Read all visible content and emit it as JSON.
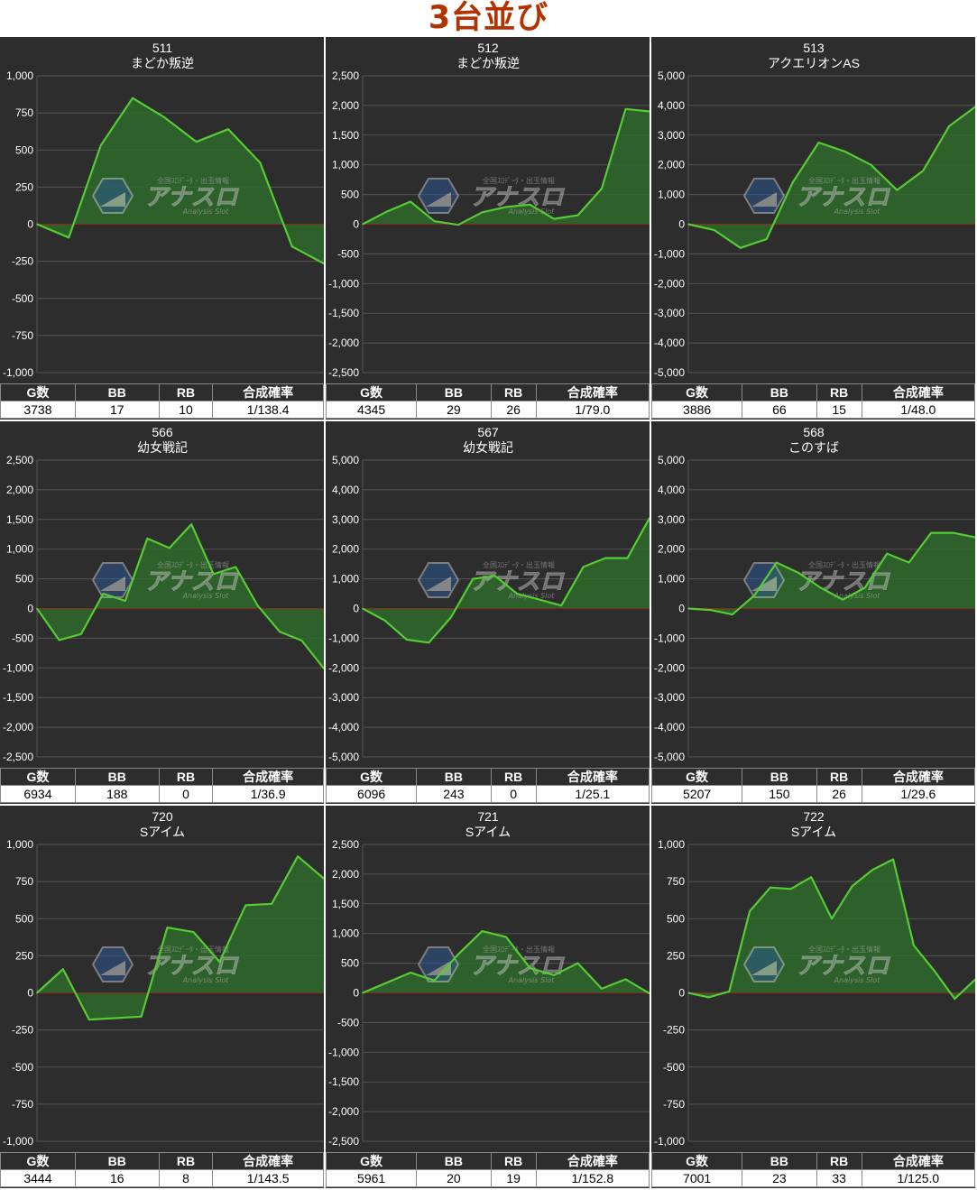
{
  "page": {
    "title": "3台並び"
  },
  "watermark": {
    "main": "アナスロ",
    "top": "全国ｽﾛﾃﾞｰﾀ・出玉情報",
    "sub": "Analysis Slot"
  },
  "colors": {
    "background": "#2d2d2d",
    "line": "#55cc33",
    "fill": "#2f6a2c",
    "zero_line": "#cc0000",
    "grid": "#555555",
    "title": "#b23200"
  },
  "stats_headers": [
    "G数",
    "BB",
    "RB",
    "合成確率"
  ],
  "chart_data": [
    {
      "type": "area",
      "number": "511",
      "name": "まどか叛逆",
      "ylim": [
        -1000,
        1000
      ],
      "ticks": [
        "1,000",
        "750",
        "500",
        "250",
        "0",
        "-250",
        "-500",
        "-750",
        "-1,000"
      ],
      "values": [
        0,
        -90,
        530,
        850,
        720,
        555,
        640,
        415,
        -150,
        -265
      ],
      "stats": {
        "games": "3738",
        "bb": "17",
        "rb": "10",
        "prob": "1/138.4"
      }
    },
    {
      "type": "area",
      "number": "512",
      "name": "まどか叛逆",
      "ylim": [
        -2500,
        2500
      ],
      "ticks": [
        "2,500",
        "2,000",
        "1,500",
        "1,000",
        "500",
        "0",
        "-500",
        "-1,000",
        "-1,500",
        "-2,000",
        "-2,500"
      ],
      "values": [
        0,
        210,
        380,
        50,
        -10,
        200,
        290,
        330,
        90,
        150,
        600,
        1940,
        1900
      ],
      "stats": {
        "games": "4345",
        "bb": "29",
        "rb": "26",
        "prob": "1/79.0"
      }
    },
    {
      "type": "area",
      "number": "513",
      "name": "アクエリオンAS",
      "ylim": [
        -5000,
        5000
      ],
      "ticks": [
        "5,000",
        "4,000",
        "3,000",
        "2,000",
        "1,000",
        "0",
        "-1,000",
        "-2,000",
        "-3,000",
        "-4,000",
        "-5,000"
      ],
      "values": [
        0,
        -200,
        -800,
        -500,
        1400,
        2750,
        2450,
        2000,
        1150,
        1800,
        3300,
        3950
      ],
      "stats": {
        "games": "3886",
        "bb": "66",
        "rb": "15",
        "prob": "1/48.0"
      }
    },
    {
      "type": "area",
      "number": "566",
      "name": "幼女戦記",
      "ylim": [
        -2500,
        2500
      ],
      "ticks": [
        "2,500",
        "2,000",
        "1,500",
        "1,000",
        "500",
        "0",
        "-500",
        "-1,000",
        "-1,500",
        "-2,000",
        "-2,500"
      ],
      "values": [
        0,
        -530,
        -430,
        250,
        130,
        1180,
        1020,
        1420,
        580,
        700,
        50,
        -390,
        -540,
        -1010
      ],
      "stats": {
        "games": "6934",
        "bb": "188",
        "rb": "0",
        "prob": "1/36.9"
      }
    },
    {
      "type": "area",
      "number": "567",
      "name": "幼女戦記",
      "ylim": [
        -5000,
        5000
      ],
      "ticks": [
        "5,000",
        "4,000",
        "3,000",
        "2,000",
        "1,000",
        "0",
        "-1,000",
        "-2,000",
        "-3,000",
        "-4,000",
        "-5,000"
      ],
      "values": [
        0,
        -400,
        -1050,
        -1150,
        -300,
        1000,
        1100,
        500,
        300,
        100,
        1400,
        1700,
        1700,
        3050
      ],
      "stats": {
        "games": "6096",
        "bb": "243",
        "rb": "0",
        "prob": "1/25.1"
      }
    },
    {
      "type": "area",
      "number": "568",
      "name": "このすば",
      "ylim": [
        -5000,
        5000
      ],
      "ticks": [
        "5,000",
        "4,000",
        "3,000",
        "2,000",
        "1,000",
        "0",
        "-1,000",
        "-2,000",
        "-3,000",
        "-4,000",
        "-5,000"
      ],
      "values": [
        0,
        -50,
        -200,
        450,
        1550,
        1200,
        700,
        300,
        700,
        1850,
        1550,
        2550,
        2550,
        2400
      ],
      "stats": {
        "games": "5207",
        "bb": "150",
        "rb": "26",
        "prob": "1/29.6"
      }
    },
    {
      "type": "area",
      "number": "720",
      "name": "Sアイム",
      "ylim": [
        -1000,
        1000
      ],
      "ticks": [
        "1,000",
        "750",
        "500",
        "250",
        "0",
        "-250",
        "-500",
        "-750",
        "-1,000"
      ],
      "values": [
        0,
        160,
        -180,
        -170,
        -160,
        440,
        410,
        210,
        590,
        600,
        920,
        770
      ],
      "stats": {
        "games": "3444",
        "bb": "16",
        "rb": "8",
        "prob": "1/143.5"
      }
    },
    {
      "type": "area",
      "number": "721",
      "name": "Sアイム",
      "ylim": [
        -2500,
        2500
      ],
      "ticks": [
        "2,500",
        "2,000",
        "1,500",
        "1,000",
        "500",
        "0",
        "-500",
        "-1,000",
        "-1,500",
        "-2,000",
        "-2,500"
      ],
      "values": [
        0,
        170,
        340,
        210,
        650,
        1040,
        940,
        420,
        300,
        500,
        70,
        230,
        -10
      ],
      "stats": {
        "games": "5961",
        "bb": "20",
        "rb": "19",
        "prob": "1/152.8"
      }
    },
    {
      "type": "area",
      "number": "722",
      "name": "Sアイム",
      "ylim": [
        -1000,
        1000
      ],
      "ticks": [
        "1,000",
        "750",
        "500",
        "250",
        "0",
        "-250",
        "-500",
        "-750",
        "-1,000"
      ],
      "values": [
        0,
        -30,
        10,
        550,
        710,
        700,
        780,
        500,
        720,
        830,
        900,
        320,
        150,
        -40,
        90
      ],
      "stats": {
        "games": "7001",
        "bb": "23",
        "rb": "33",
        "prob": "1/125.0"
      }
    }
  ]
}
